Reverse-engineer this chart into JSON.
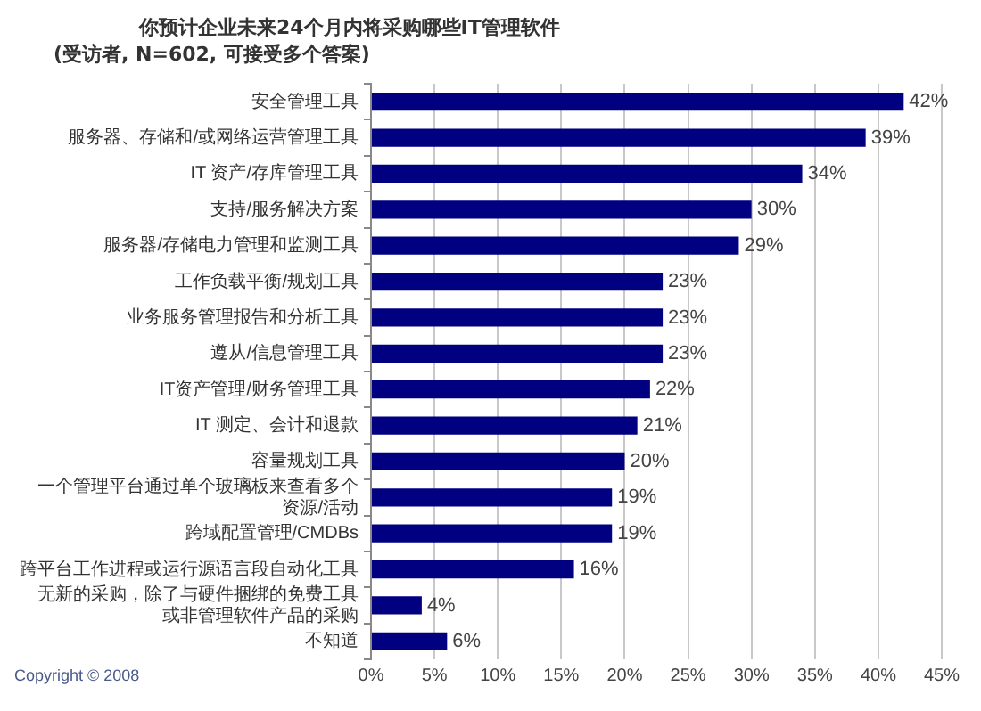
{
  "chart_data": {
    "type": "bar",
    "orientation": "horizontal",
    "title": "你预计企业未来24个月内将采购哪些IT管理软件",
    "subtitle": "(受访者, N=602, 可接受多个答案)",
    "categories": [
      "安全管理工具",
      "服务器、存储和/或网络运营管理工具",
      "IT 资产/存库管理工具",
      "支持/服务解决方案",
      "服务器/存储电力管理和监测工具",
      "工作负载平衡/规划工具",
      "业务服务管理报告和分析工具",
      "遵从/信息管理工具",
      "IT资产管理/财务管理工具",
      "IT 测定、会计和退款",
      "容量规划工具",
      "一个管理平台通过单个玻璃板来查看多个资源/活动",
      "跨域配置管理/CMDBs",
      "跨平台工作进程或运行源语言段自动化工具",
      "无新的采购，除了与硬件捆绑的免费工具或非管理软件产品的采购",
      "不知道"
    ],
    "values": [
      42,
      39,
      34,
      30,
      29,
      23,
      23,
      23,
      22,
      21,
      20,
      19,
      19,
      16,
      4,
      6
    ],
    "value_labels": [
      "42%",
      "39%",
      "34%",
      "30%",
      "29%",
      "23%",
      "23%",
      "23%",
      "22%",
      "21%",
      "20%",
      "19%",
      "19%",
      "16%",
      "4%",
      "6%"
    ],
    "color": "#000080",
    "xlim": [
      0,
      45
    ],
    "xticks": [
      {
        "value": 0,
        "label": "0%"
      },
      {
        "value": 5,
        "label": "5%"
      },
      {
        "value": 10,
        "label": "10%"
      },
      {
        "value": 15,
        "label": "15%"
      },
      {
        "value": 20,
        "label": "20%"
      },
      {
        "value": 25,
        "label": "25%"
      },
      {
        "value": 30,
        "label": "30%"
      },
      {
        "value": 35,
        "label": "35%"
      },
      {
        "value": 40,
        "label": "40%"
      },
      {
        "value": 45,
        "label": "45%"
      }
    ],
    "grid": "x",
    "legend": false,
    "annotations": [
      "Copyright © 2008"
    ]
  }
}
